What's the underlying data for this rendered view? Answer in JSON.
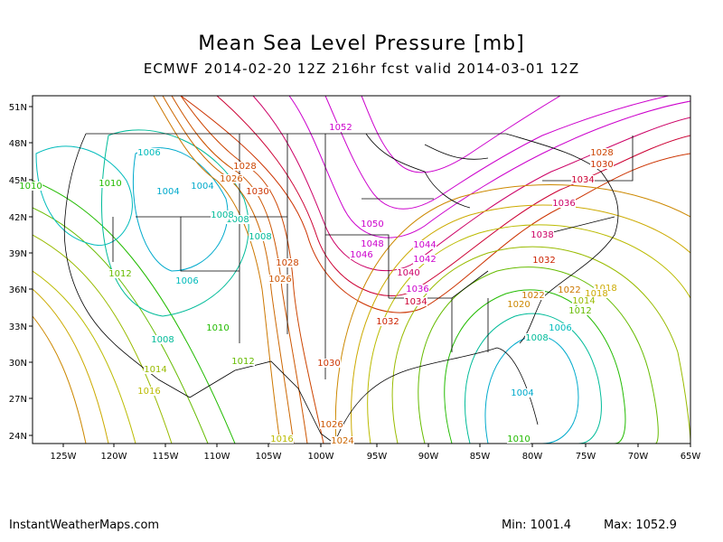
{
  "title": "Mean Sea Level Pressure [mb]",
  "subtitle": "ECMWF 2014-02-20 12Z 216hr fcst valid 2014-03-01 12Z",
  "footer": {
    "site": "InstantWeatherMaps.com",
    "min": "Min: 1001.4",
    "max": "Max: 1052.9"
  },
  "axes": {
    "lat_labels": [
      "51N",
      "48N",
      "45N",
      "42N",
      "39N",
      "36N",
      "33N",
      "30N",
      "27N",
      "24N"
    ],
    "lon_labels": [
      "125W",
      "120W",
      "115W",
      "110W",
      "105W",
      "100W",
      "95W",
      "90W",
      "85W",
      "80W",
      "75W",
      "70W",
      "65W"
    ]
  },
  "contour_labels": [
    {
      "text": "1052",
      "color": "#cc00cc"
    },
    {
      "text": "1050",
      "color": "#cc00cc"
    },
    {
      "text": "1048",
      "color": "#cc00cc"
    },
    {
      "text": "1046",
      "color": "#cc00cc"
    },
    {
      "text": "1044",
      "color": "#cc00cc"
    },
    {
      "text": "1042",
      "color": "#cc00cc"
    },
    {
      "text": "1040",
      "color": "#cc0066"
    },
    {
      "text": "1038",
      "color": "#cc00cc"
    },
    {
      "text": "1036",
      "color": "#cc00cc"
    },
    {
      "text": "1036",
      "color": "#cc0066"
    },
    {
      "text": "1038",
      "color": "#cc0066"
    },
    {
      "text": "1034",
      "color": "#cc0033"
    },
    {
      "text": "1034",
      "color": "#cc0033"
    },
    {
      "text": "1032",
      "color": "#cc2200"
    },
    {
      "text": "1032",
      "color": "#cc2200"
    },
    {
      "text": "1030",
      "color": "#cc3300"
    },
    {
      "text": "1030",
      "color": "#cc3300"
    },
    {
      "text": "1030",
      "color": "#cc3300"
    },
    {
      "text": "1028",
      "color": "#cc4400"
    },
    {
      "text": "1028",
      "color": "#cc4400"
    },
    {
      "text": "1028",
      "color": "#cc4400"
    },
    {
      "text": "1026",
      "color": "#cc5500"
    },
    {
      "text": "1026",
      "color": "#cc5500"
    },
    {
      "text": "1026",
      "color": "#cc5500"
    },
    {
      "text": "1024",
      "color": "#cc6600"
    },
    {
      "text": "1022",
      "color": "#cc7700"
    },
    {
      "text": "1022",
      "color": "#cc7700"
    },
    {
      "text": "1020",
      "color": "#cc8800"
    },
    {
      "text": "1018",
      "color": "#ccaa00"
    },
    {
      "text": "1018",
      "color": "#ccaa00"
    },
    {
      "text": "1016",
      "color": "#bbbb00"
    },
    {
      "text": "1016",
      "color": "#bbbb00"
    },
    {
      "text": "1014",
      "color": "#99bb00"
    },
    {
      "text": "1014",
      "color": "#99bb00"
    },
    {
      "text": "1012",
      "color": "#66bb00"
    },
    {
      "text": "1012",
      "color": "#66bb00"
    },
    {
      "text": "1012",
      "color": "#66bb00"
    },
    {
      "text": "1010",
      "color": "#22bb00"
    },
    {
      "text": "1010",
      "color": "#22bb00"
    },
    {
      "text": "1010",
      "color": "#22bb00"
    },
    {
      "text": "1010",
      "color": "#22bb00"
    },
    {
      "text": "1008",
      "color": "#00bb99"
    },
    {
      "text": "1008",
      "color": "#00bb99"
    },
    {
      "text": "1008",
      "color": "#00bb99"
    },
    {
      "text": "1008",
      "color": "#00bb99"
    },
    {
      "text": "1008",
      "color": "#00bb99"
    },
    {
      "text": "1006",
      "color": "#00bbbb"
    },
    {
      "text": "1006",
      "color": "#00bbbb"
    },
    {
      "text": "1006",
      "color": "#00bbbb"
    },
    {
      "text": "1004",
      "color": "#00aacc"
    },
    {
      "text": "1004",
      "color": "#00aacc"
    },
    {
      "text": "1004",
      "color": "#00aacc"
    }
  ],
  "map_elements": {
    "contour_colors": {
      "low": "#00bbcc",
      "mid": "#bbbb00",
      "high": "#cc3300",
      "very_high": "#cc00cc"
    },
    "boundary_color": "#000000",
    "frame_color": "#000000"
  }
}
